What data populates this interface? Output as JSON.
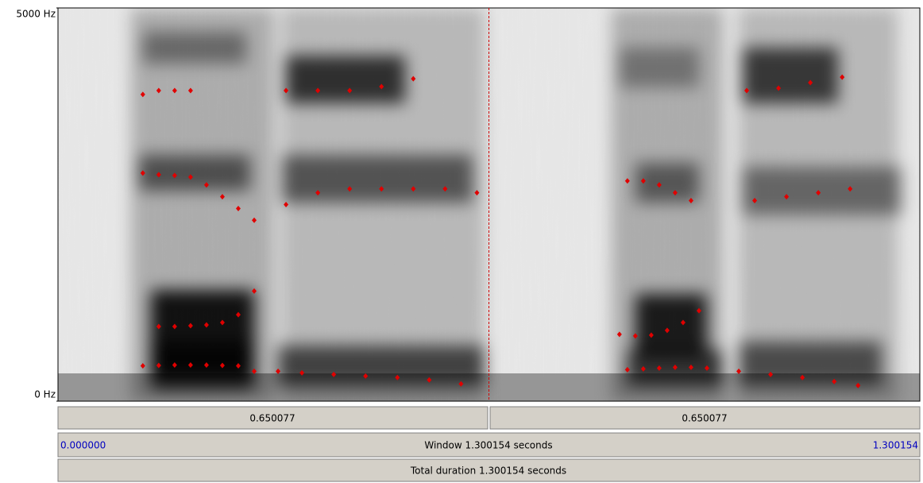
{
  "spectrogram": {
    "frequency_ticks": [
      {
        "value": 5000,
        "label": "5000 Hz"
      },
      {
        "value": 0,
        "label": "0 Hz"
      }
    ],
    "window_start": {
      "value": 0,
      "label": "0.000000"
    },
    "window_end": {
      "value": 1.300154,
      "label": "1.300154"
    },
    "cursor": 0.650077,
    "formant_tracks": [
      {
        "time": [
          0.128,
          0.152,
          0.176,
          0.2,
          0.224,
          0.248,
          0.272
        ],
        "frequency": [
          450,
          455,
          460,
          460,
          460,
          455,
          450
        ]
      },
      {
        "time": [
          0.296,
          0.332,
          0.368,
          0.416,
          0.464,
          0.512,
          0.56,
          0.608
        ],
        "frequency": [
          380,
          380,
          360,
          340,
          320,
          300,
          270,
          220
        ]
      },
      {
        "time": [
          0.152,
          0.176,
          0.2,
          0.224,
          0.248,
          0.272,
          0.296
        ],
        "frequency": [
          950,
          950,
          960,
          970,
          1000,
          1100,
          1400
        ]
      },
      {
        "time": [
          0.128,
          0.152,
          0.176,
          0.2,
          0.224,
          0.248,
          0.272,
          0.296
        ],
        "frequency": [
          2900,
          2880,
          2870,
          2850,
          2750,
          2600,
          2450,
          2300
        ]
      },
      {
        "time": [
          0.128,
          0.152,
          0.176,
          0.2
        ],
        "frequency": [
          3900,
          3950,
          3950,
          3950
        ]
      },
      {
        "time": [
          0.344,
          0.392,
          0.44,
          0.488,
          0.536,
          0.584,
          0.632
        ],
        "frequency": [
          2500,
          2650,
          2700,
          2700,
          2700,
          2700,
          2650
        ]
      },
      {
        "time": [
          0.344,
          0.392,
          0.44,
          0.488,
          0.536
        ],
        "frequency": [
          3950,
          3950,
          3950,
          4000,
          4100
        ]
      },
      {
        "time": [
          0.859,
          0.883,
          0.907,
          0.931,
          0.955,
          0.979
        ],
        "frequency": [
          400,
          410,
          420,
          430,
          430,
          420
        ]
      },
      {
        "time": [
          1.027,
          1.075,
          1.123,
          1.171,
          1.207
        ],
        "frequency": [
          380,
          340,
          300,
          250,
          200
        ]
      },
      {
        "time": [
          0.847,
          0.871,
          0.895,
          0.919,
          0.943,
          0.967
        ],
        "frequency": [
          850,
          830,
          840,
          900,
          1000,
          1150
        ]
      },
      {
        "time": [
          0.859,
          0.883,
          0.907,
          0.931,
          0.955
        ],
        "frequency": [
          2800,
          2800,
          2750,
          2650,
          2550
        ]
      },
      {
        "time": [
          1.051,
          1.099,
          1.147,
          1.195
        ],
        "frequency": [
          2550,
          2600,
          2650,
          2700
        ]
      },
      {
        "time": [
          1.039,
          1.087,
          1.135,
          1.183
        ],
        "frequency": [
          3950,
          3980,
          4050,
          4120
        ]
      }
    ]
  },
  "duration_bar": {
    "left": "0.650077",
    "right": "0.650077"
  },
  "window_bar": {
    "text": "Window 1.300154 seconds"
  },
  "total_bar": {
    "text": "Total duration 1.300154 seconds"
  }
}
